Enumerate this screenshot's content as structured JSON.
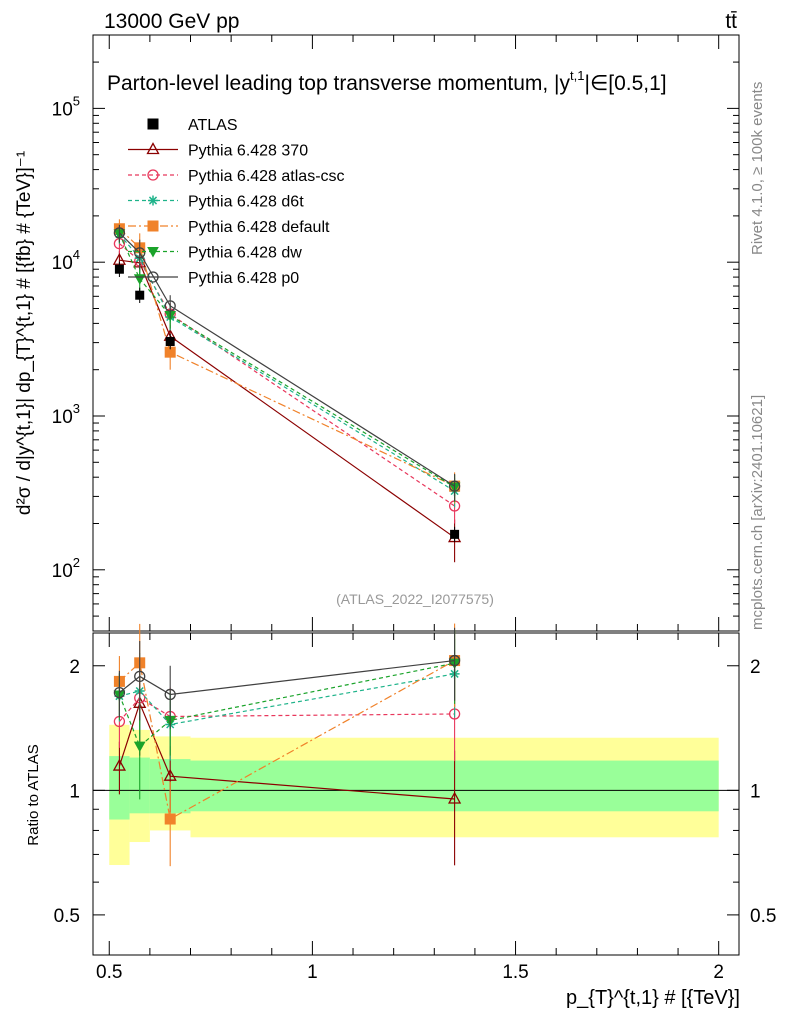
{
  "header": {
    "energy_label": "13000 GeV pp",
    "process_label": "tt̄",
    "plot_title": "Parton-level leading top transverse momentum, |y",
    "plot_title_sup": "t,1",
    "plot_title_tail": "|∈[0.5,1]",
    "analysis_id": "(ATLAS_2022_I2077575)",
    "rivet_label": "Rivet 4.1.0, ≥ 100k events",
    "mcplots_label": "mcplots.cern.ch [arXiv:2401.10621]"
  },
  "axes": {
    "main_ylabel": "d²σ / d|y^{t,1}| dp_{T}^{t,1} # [{fb} # {TeV}]⁻¹",
    "ratio_ylabel": "Ratio to ATLAS",
    "xlabel": "p_{T}^{t,1} # [{TeV}]",
    "main_yticks": [
      {
        "value": 100,
        "label": "10",
        "exp": "2"
      },
      {
        "value": 1000,
        "label": "10",
        "exp": "3"
      },
      {
        "value": 10000,
        "label": "10",
        "exp": "4"
      },
      {
        "value": 100000,
        "label": "10",
        "exp": "5"
      }
    ],
    "ratio_yticks": [
      {
        "value": 0.5,
        "label": "0.5"
      },
      {
        "value": 1,
        "label": "1"
      },
      {
        "value": 2,
        "label": "2"
      }
    ],
    "xticks": [
      {
        "value": 0.5,
        "label": "0.5"
      },
      {
        "value": 1,
        "label": "1"
      },
      {
        "value": 1.5,
        "label": "1.5"
      },
      {
        "value": 2,
        "label": "2"
      }
    ]
  },
  "chart_data": {
    "type": "scatter",
    "xlim": [
      0.46,
      2.05
    ],
    "ylim_main": [
      40,
      300000
    ],
    "ylim_ratio": [
      0.4,
      2.4
    ],
    "bins": [
      {
        "x": 0.525,
        "lo": 0.5,
        "hi": 0.55
      },
      {
        "x": 0.575,
        "lo": 0.55,
        "hi": 0.6
      },
      {
        "x": 0.65,
        "lo": 0.6,
        "hi": 0.7
      },
      {
        "x": 1.35,
        "lo": 0.7,
        "hi": 2.0
      }
    ],
    "data": {
      "name": "ATLAS",
      "values": [
        9000,
        6100,
        3050,
        170
      ]
    },
    "bands": {
      "inner_lo": [
        0.85,
        0.88,
        0.88,
        0.89
      ],
      "inner_hi": [
        1.21,
        1.2,
        1.19,
        1.18
      ],
      "outer_lo": [
        0.66,
        0.75,
        0.8,
        0.77
      ],
      "outer_hi": [
        1.44,
        1.4,
        1.35,
        1.34
      ]
    },
    "series": [
      {
        "name": "Pythia 6.428 370",
        "color": "#8b0000",
        "dash": "",
        "marker": "triangle-open",
        "values": [
          10300,
          9900,
          3300,
          162
        ],
        "errlo": [
          1500,
          2500,
          600,
          50
        ],
        "errhi": [
          1500,
          2500,
          600,
          50
        ]
      },
      {
        "name": "Pythia 6.428 atlas-csc",
        "color": "#e8375c",
        "dash": "4,3",
        "marker": "circle-open",
        "values": [
          13200,
          10200,
          4600,
          260
        ],
        "errlo": [
          1800,
          2300,
          800,
          60
        ],
        "errhi": [
          1800,
          2300,
          800,
          60
        ]
      },
      {
        "name": "Pythia 6.428 d6t",
        "color": "#1eb38a",
        "dash": "4,3",
        "marker": "star",
        "values": [
          15200,
          10600,
          4400,
          325
        ],
        "errlo": [
          2000,
          2500,
          800,
          70
        ],
        "errhi": [
          2000,
          2500,
          800,
          70
        ]
      },
      {
        "name": "Pythia 6.428 default",
        "color": "#f0822a",
        "dash": "8,3,2,3",
        "marker": "square",
        "values": [
          16500,
          12400,
          2600,
          350
        ],
        "errlo": [
          2500,
          3000,
          600,
          80
        ],
        "errhi": [
          2500,
          3000,
          600,
          80
        ]
      },
      {
        "name": "Pythia 6.428 dw",
        "color": "#1aa32a",
        "dash": "4,3",
        "marker": "triangle-down",
        "values": [
          15300,
          7800,
          4500,
          345
        ],
        "errlo": [
          2000,
          2000,
          800,
          70
        ],
        "errhi": [
          2000,
          2000,
          800,
          70
        ]
      },
      {
        "name": "Pythia 6.428 p0",
        "color": "#404040",
        "dash": "",
        "marker": "circle-open",
        "values": [
          15500,
          11500,
          5200,
          350
        ],
        "errlo": [
          2000,
          2500,
          900,
          70
        ],
        "errhi": [
          2000,
          2500,
          900,
          70
        ]
      }
    ]
  },
  "colors": {
    "outer_band": "#ffff99",
    "inner_band": "#99ff99",
    "axis": "#000000",
    "analysis_label": "#999999",
    "side_label": "#888888"
  }
}
